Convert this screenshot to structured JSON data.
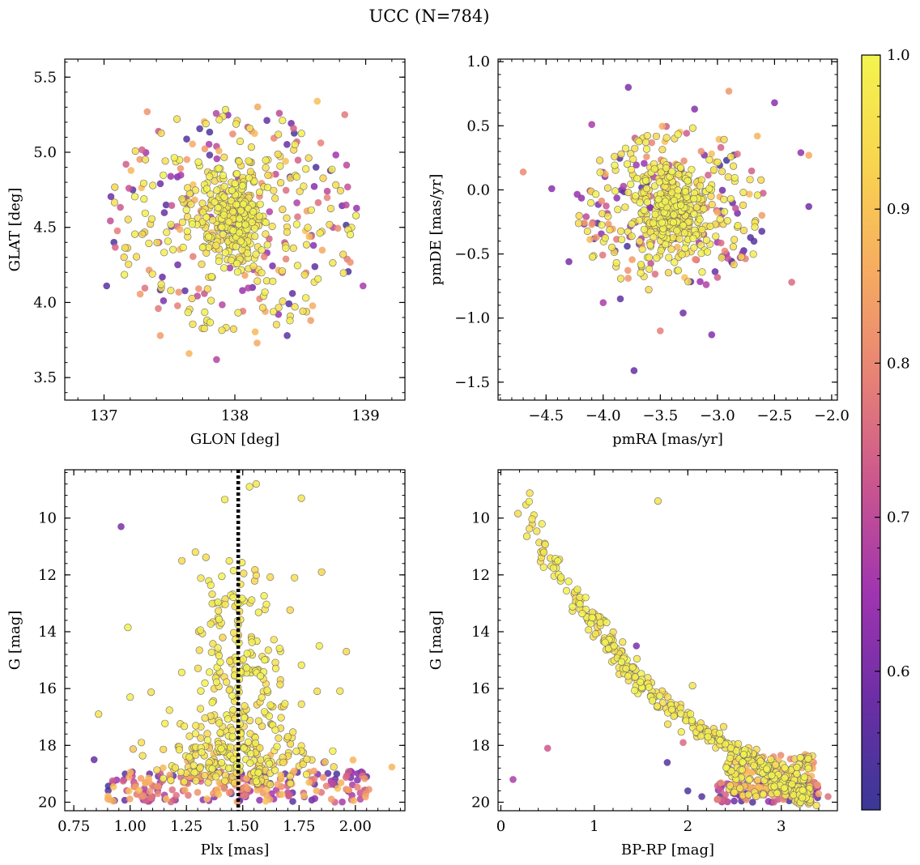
{
  "figure": {
    "title": "UCC (N=784)"
  },
  "chart_data": [
    {
      "type": "scatter",
      "id": "sky",
      "xlabel": "GLON [deg]",
      "ylabel": "GLAT [deg]",
      "xlim": [
        136.7,
        139.3
      ],
      "ylim": [
        3.35,
        5.62
      ],
      "xticks": [
        137,
        138,
        139
      ],
      "yticks": [
        3.5,
        4.0,
        4.5,
        5.0,
        5.5
      ],
      "xtick_labels": [
        "137",
        "138",
        "139"
      ],
      "ytick_labels": [
        "3.5",
        "4.0",
        "4.5",
        "5.0",
        "5.5"
      ],
      "y_inverted": false,
      "points_description": "784 stars: dense yellow (high membership) core near GLON 138.0, GLAT 4.55; lower-probability purple members scattered in a wide halo",
      "cluster_center": [
        138.0,
        4.55
      ],
      "points": [
        [
          137.33,
          5.27
        ],
        [
          138.63,
          5.34
        ],
        [
          137.02,
          4.11
        ],
        [
          138.98,
          4.11
        ],
        [
          137.43,
          3.78
        ],
        [
          138.4,
          3.78
        ],
        [
          138.58,
          3.88
        ],
        [
          137.86,
          3.62
        ],
        [
          137.65,
          3.66
        ],
        [
          137.51,
          4.84
        ],
        [
          137.22,
          4.75
        ],
        [
          138.34,
          5.26
        ],
        [
          138.84,
          5.25
        ],
        [
          137.42,
          4.4
        ],
        [
          138.75,
          4.5
        ],
        [
          137.63,
          4.66
        ],
        [
          138.17,
          3.73
        ],
        [
          138.48,
          4.57
        ],
        [
          137.3,
          4.46
        ],
        [
          138.62,
          4.9
        ]
      ]
    },
    {
      "type": "scatter",
      "id": "proper-motion",
      "xlabel": "pmRA [mas/yr]",
      "ylabel": "pmDE [mas/yr]",
      "xlim": [
        -4.92,
        -1.95
      ],
      "ylim": [
        -1.64,
        1.02
      ],
      "xticks": [
        -4.5,
        -4.0,
        -3.5,
        -3.0,
        -2.5,
        -2.0
      ],
      "yticks": [
        -1.5,
        -1.0,
        -0.5,
        0.0,
        0.5,
        1.0
      ],
      "xtick_labels": [
        "−4.5",
        "−4.0",
        "−3.5",
        "−3.0",
        "−2.5",
        "−2.0"
      ],
      "ytick_labels": [
        "−1.5",
        "−1.0",
        "−0.5",
        "0.0",
        "0.5",
        "1.0"
      ],
      "y_inverted": false,
      "points_description": "Dense yellow clump centred near pmRA −3.4, pmDE −0.15; purple outliers in wider halo",
      "cluster_center": [
        -3.4,
        -0.15
      ],
      "points": [
        [
          -3.73,
          -1.41
        ],
        [
          -3.78,
          0.8
        ],
        [
          -2.9,
          0.77
        ],
        [
          -4.45,
          0.01
        ],
        [
          -4.1,
          0.51
        ],
        [
          -2.27,
          0.29
        ],
        [
          -3.05,
          -1.13
        ],
        [
          -3.5,
          -1.1
        ],
        [
          -4.7,
          0.14
        ],
        [
          -4.0,
          -0.88
        ],
        [
          -2.5,
          0.68
        ],
        [
          -2.2,
          0.27
        ],
        [
          -3.85,
          -0.85
        ],
        [
          -2.35,
          -0.72
        ],
        [
          -4.3,
          -0.56
        ],
        [
          -3.2,
          0.63
        ],
        [
          -2.65,
          0.42
        ],
        [
          -4.1,
          -0.27
        ],
        [
          -2.2,
          -0.13
        ],
        [
          -3.3,
          -0.96
        ]
      ]
    },
    {
      "type": "scatter",
      "id": "plx-g",
      "xlabel": "Plx [mas]",
      "ylabel": "G [mag]",
      "xlim": [
        0.71,
        2.22
      ],
      "ylim": [
        20.3,
        8.3
      ],
      "xticks": [
        0.75,
        1.0,
        1.25,
        1.5,
        1.75,
        2.0
      ],
      "yticks": [
        10,
        12,
        14,
        16,
        18,
        20
      ],
      "xtick_labels": [
        "0.75",
        "1.00",
        "1.25",
        "1.50",
        "1.75",
        "2.00"
      ],
      "ytick_labels": [
        "10",
        "12",
        "14",
        "16",
        "18",
        "20"
      ],
      "y_inverted": true,
      "reference_line": {
        "x": 1.48,
        "style": "dotted",
        "color": "#000000"
      },
      "points_description": "Bright members concentrate around Plx 1.48; faint stars G 18–20 spread widely in parallax with lower probabilities",
      "points": [
        [
          0.96,
          10.3
        ],
        [
          0.99,
          13.85
        ],
        [
          1.0,
          16.3
        ],
        [
          1.84,
          14.5
        ],
        [
          0.86,
          16.9
        ],
        [
          0.84,
          18.5
        ],
        [
          1.86,
          18.6
        ],
        [
          1.96,
          14.7
        ],
        [
          1.56,
          8.8
        ],
        [
          1.53,
          8.9
        ],
        [
          1.42,
          9.35
        ],
        [
          1.76,
          9.3
        ],
        [
          1.85,
          11.9
        ],
        [
          1.23,
          11.5
        ],
        [
          1.29,
          11.2
        ],
        [
          1.73,
          12.1
        ],
        [
          2.05,
          19.1
        ],
        [
          2.06,
          19.55
        ],
        [
          1.05,
          17.9
        ],
        [
          1.97,
          19.6
        ]
      ]
    },
    {
      "type": "scatter",
      "id": "cmd",
      "xlabel": "BP-RP [mag]",
      "ylabel": "G [mag]",
      "xlim": [
        -0.03,
        3.6
      ],
      "ylim": [
        20.3,
        8.3
      ],
      "xticks": [
        0,
        1,
        2,
        3
      ],
      "yticks": [
        10,
        12,
        14,
        16,
        18,
        20
      ],
      "xtick_labels": [
        "0",
        "1",
        "2",
        "3"
      ],
      "ytick_labels": [
        "10",
        "12",
        "14",
        "16",
        "18",
        "20"
      ],
      "y_inverted": true,
      "points_description": "Main sequence from BP-RP 0.25, G 8.8 down to BP-RP 3.3, G 20; faint red end populated by lower probability members",
      "main_sequence": [
        [
          0.25,
          8.8
        ],
        [
          0.3,
          10.3
        ],
        [
          0.45,
          11.4
        ],
        [
          0.75,
          12.5
        ],
        [
          1.0,
          13.6
        ],
        [
          1.25,
          14.9
        ],
        [
          1.55,
          16.0
        ],
        [
          1.9,
          16.9
        ],
        [
          2.3,
          17.7
        ],
        [
          2.7,
          18.5
        ],
        [
          3.0,
          19.3
        ],
        [
          3.3,
          19.9
        ]
      ],
      "points": [
        [
          0.13,
          19.2
        ],
        [
          0.5,
          18.1
        ],
        [
          1.68,
          9.4
        ],
        [
          1.45,
          14.5
        ],
        [
          1.78,
          18.6
        ],
        [
          1.95,
          17.9
        ],
        [
          2.0,
          19.6
        ],
        [
          2.15,
          19.8
        ],
        [
          3.5,
          19.8
        ],
        [
          3.4,
          19.7
        ],
        [
          2.05,
          15.9
        ],
        [
          2.9,
          20.0
        ]
      ]
    }
  ],
  "colorbar": {
    "label": "",
    "colormap": "plasma",
    "range": [
      0.51,
      1.0
    ],
    "ticks": [
      0.6,
      0.7,
      0.8,
      0.9,
      1.0
    ],
    "tick_labels": [
      "0.6",
      "0.7",
      "0.8",
      "0.9",
      "1.0"
    ],
    "stops": [
      "#3a3896",
      "#6b2ea5",
      "#9f34b0",
      "#c9558f",
      "#e78176",
      "#f6ab61",
      "#f9d54f",
      "#f3f44f"
    ]
  },
  "colors": {
    "axis": "#000000",
    "marker_edge": "#6b6b6b",
    "background": "#ffffff"
  }
}
